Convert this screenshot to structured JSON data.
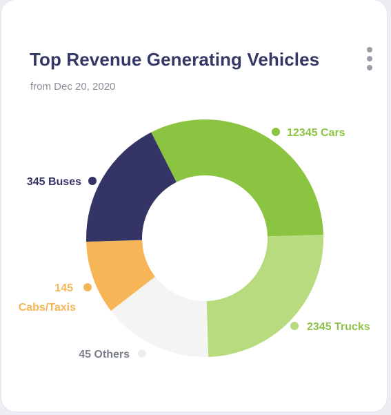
{
  "card": {
    "title": "Top Revenue Generating Vehicles",
    "subtitle": "from Dec 20, 2020",
    "menu_icon": "more-vertical-icon"
  },
  "colors": {
    "title": "#333867",
    "subtitle": "#8a8e99",
    "cars": "#8bc440",
    "trucks": "#b9db7f",
    "others": "#f4f5f2",
    "cabs": "#f6b657",
    "buses": "#343566"
  },
  "chart_data": {
    "type": "pie",
    "variant": "donut",
    "title": "Top Revenue Generating Vehicles",
    "subtitle": "from Dec 20, 2020",
    "legend": "labels-around",
    "slices": [
      {
        "label": "12345 Cars",
        "value": 12345,
        "share_pct": 32,
        "color": "#8bc440"
      },
      {
        "label": "2345 Trucks",
        "value": 2345,
        "share_pct": 25,
        "color": "#b9db7f"
      },
      {
        "label": "45 Others",
        "value": 45,
        "share_pct": 15,
        "color": "#f4f5f2"
      },
      {
        "label": "145 Cabs/Taxis",
        "value": 145,
        "share_pct": 10,
        "color": "#f6b657"
      },
      {
        "label": "345 Buses",
        "value": 345,
        "share_pct": 18,
        "color": "#343566"
      }
    ],
    "label_lines": [
      [
        "12345 Cars"
      ],
      [
        "2345 Trucks"
      ],
      [
        "45 Others"
      ],
      [
        "145",
        "Cabs/Taxis"
      ],
      [
        "345 Buses"
      ]
    ]
  }
}
